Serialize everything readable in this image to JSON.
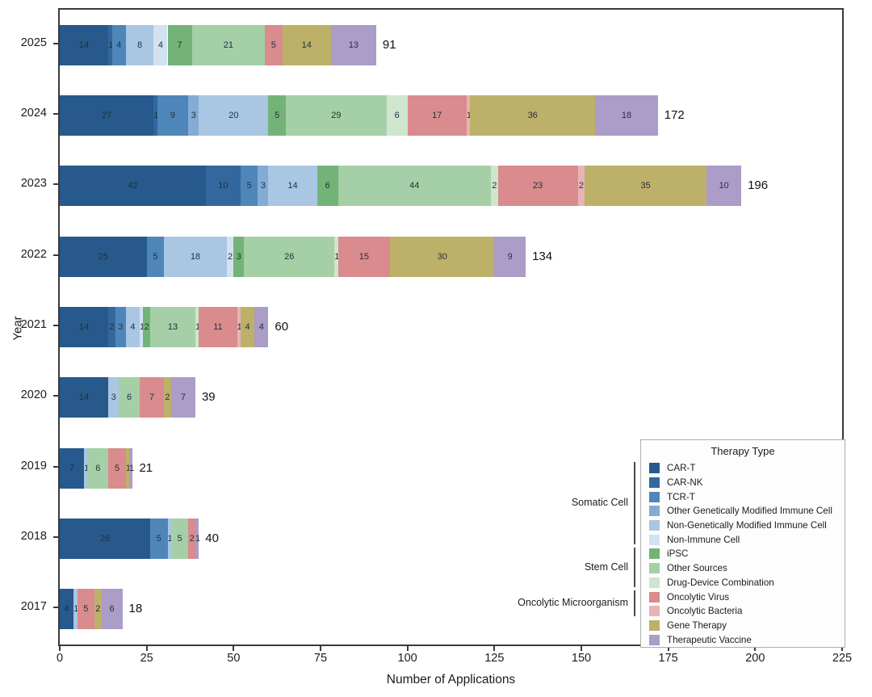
{
  "chart_data": {
    "type": "bar",
    "orientation": "horizontal",
    "stacked": true,
    "xlabel": "Number of Applications",
    "ylabel": "Year",
    "xlim": [
      0,
      225
    ],
    "xticks": [
      0,
      25,
      50,
      75,
      100,
      125,
      150,
      175,
      200,
      225
    ],
    "grid": false,
    "categories": [
      "2025",
      "2024",
      "2023",
      "2022",
      "2021",
      "2020",
      "2019",
      "2018",
      "2017"
    ],
    "series": [
      {
        "name": "CAR-T",
        "color": "#27598c",
        "values": [
          14,
          27,
          42,
          25,
          14,
          14,
          7,
          26,
          4
        ]
      },
      {
        "name": "CAR-NK",
        "color": "#33689e",
        "values": [
          1,
          1,
          10,
          0,
          2,
          0,
          0,
          0,
          0
        ]
      },
      {
        "name": "TCR-T",
        "color": "#4f86ba",
        "values": [
          4,
          9,
          5,
          5,
          3,
          0,
          0,
          5,
          0
        ]
      },
      {
        "name": "Other Genetically Modified Immune Cell",
        "color": "#84abd4",
        "values": [
          0,
          3,
          3,
          0,
          0,
          0,
          0,
          0,
          0
        ]
      },
      {
        "name": "Non-Genetically Modified Immune Cell",
        "color": "#a9c6e3",
        "values": [
          8,
          20,
          14,
          18,
          4,
          3,
          1,
          1,
          1
        ]
      },
      {
        "name": "Non-Immune Cell",
        "color": "#d2e2f1",
        "values": [
          4,
          0,
          0,
          2,
          1,
          0,
          0,
          0,
          0
        ]
      },
      {
        "name": "iPSC",
        "color": "#74b377",
        "values": [
          7,
          5,
          6,
          3,
          2,
          0,
          0,
          0,
          0
        ]
      },
      {
        "name": "Other Sources",
        "color": "#a5cfa6",
        "values": [
          21,
          29,
          44,
          26,
          13,
          6,
          6,
          5,
          0
        ]
      },
      {
        "name": "Drug-Device Combination",
        "color": "#cee6ce",
        "values": [
          0,
          6,
          2,
          1,
          1,
          0,
          0,
          0,
          0
        ]
      },
      {
        "name": "Oncolytic Virus",
        "color": "#d98b8e",
        "values": [
          5,
          17,
          23,
          15,
          11,
          7,
          5,
          2,
          5
        ]
      },
      {
        "name": "Oncolytic Bacteria",
        "color": "#e8b3b6",
        "values": [
          0,
          1,
          2,
          0,
          1,
          0,
          0,
          0,
          0
        ]
      },
      {
        "name": "Gene Therapy",
        "color": "#bdb169",
        "values": [
          14,
          36,
          35,
          30,
          4,
          2,
          1,
          0,
          2
        ]
      },
      {
        "name": "Therapeutic Vaccine",
        "color": "#ab9cc8",
        "values": [
          13,
          18,
          10,
          9,
          4,
          7,
          1,
          1,
          6
        ]
      }
    ],
    "totals": [
      91,
      172,
      196,
      134,
      60,
      39,
      21,
      40,
      18
    ],
    "legend": {
      "title": "Therapy Type",
      "position": "lower right",
      "groups": [
        {
          "label": "Somatic Cell",
          "span": [
            0,
            5
          ]
        },
        {
          "label": "Stem Cell",
          "span": [
            6,
            8
          ]
        },
        {
          "label": "Oncolytic Microorganism",
          "span": [
            9,
            10
          ]
        }
      ]
    }
  }
}
